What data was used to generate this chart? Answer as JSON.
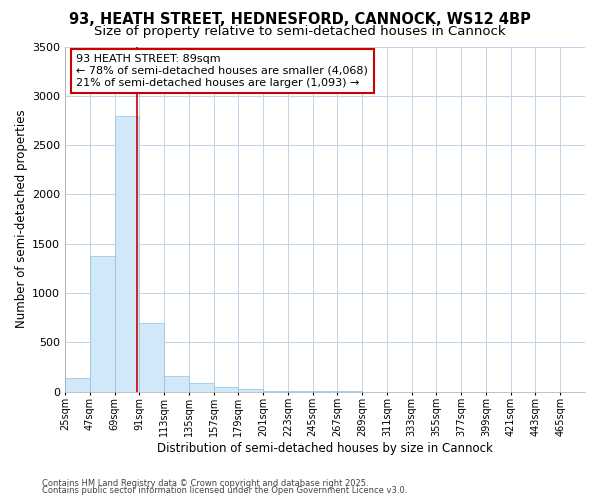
{
  "title": "93, HEATH STREET, HEDNESFORD, CANNOCK, WS12 4BP",
  "subtitle": "Size of property relative to semi-detached houses in Cannock",
  "xlabel": "Distribution of semi-detached houses by size in Cannock",
  "ylabel": "Number of semi-detached properties",
  "property_size": 89,
  "property_label": "93 HEATH STREET: 89sqm",
  "pct_smaller": 78,
  "pct_larger": 21,
  "n_smaller": 4068,
  "n_larger": 1093,
  "bin_edges": [
    25,
    47,
    69,
    91,
    113,
    135,
    157,
    179,
    201,
    223,
    245,
    267,
    289,
    311,
    333,
    355,
    377,
    399,
    421,
    443,
    465,
    487
  ],
  "bar_values": [
    140,
    1370,
    2800,
    700,
    160,
    90,
    50,
    30,
    5,
    2,
    1,
    1,
    0,
    0,
    0,
    0,
    0,
    0,
    0,
    0,
    0
  ],
  "bar_color": "#d0e8f8",
  "bar_edge_color": "#90c0e0",
  "vline_color": "#cc0000",
  "annotation_box_edge_color": "#cc0000",
  "grid_color": "#c0d4e8",
  "background_color": "#ffffff",
  "plot_bg_color": "#ffffff",
  "ylim": [
    0,
    3500
  ],
  "yticks": [
    0,
    500,
    1000,
    1500,
    2000,
    2500,
    3000,
    3500
  ],
  "footnote1": "Contains HM Land Registry data © Crown copyright and database right 2025.",
  "footnote2": "Contains public sector information licensed under the Open Government Licence v3.0.",
  "title_fontsize": 10.5,
  "subtitle_fontsize": 9.5,
  "tick_fontsize": 7,
  "ylabel_fontsize": 8.5,
  "xlabel_fontsize": 8.5,
  "annotation_fontsize": 8
}
